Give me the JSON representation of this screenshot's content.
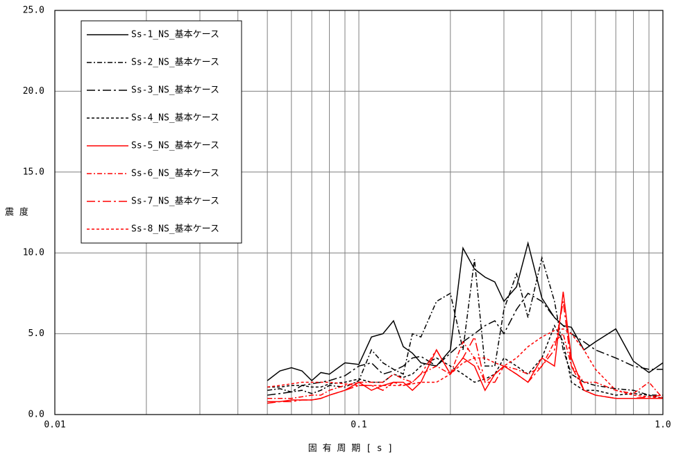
{
  "chart_data": {
    "type": "line",
    "xlabel": "固 有 周 期 [ s ]",
    "ylabel": "震 度",
    "xscale": "log",
    "xlim": [
      0.01,
      1
    ],
    "ylim": [
      0,
      25
    ],
    "xticks": [
      0.01,
      0.1,
      {
        "value": 1,
        "label": "1.0"
      }
    ],
    "xminorticks": [
      0.02,
      0.03,
      0.04,
      0.05,
      0.06,
      0.07,
      0.08,
      0.09,
      0.2,
      0.3,
      0.4,
      0.5,
      0.6,
      0.7,
      0.8,
      0.9
    ],
    "yticks": [
      {
        "value": 0,
        "label": "0.0"
      },
      {
        "value": 5,
        "label": "5.0"
      },
      {
        "value": 10,
        "label": "10.0"
      },
      {
        "value": 15,
        "label": "15.0"
      },
      {
        "value": 20,
        "label": "20.0"
      },
      {
        "value": 25,
        "label": "25.0"
      }
    ],
    "grid": true,
    "legend": "upper left",
    "x": [
      0.05,
      0.055,
      0.06,
      0.065,
      0.07,
      0.075,
      0.08,
      0.09,
      0.1,
      0.11,
      0.12,
      0.13,
      0.14,
      0.15,
      0.16,
      0.18,
      0.2,
      0.22,
      0.24,
      0.26,
      0.28,
      0.3,
      0.33,
      0.36,
      0.4,
      0.44,
      0.47,
      0.5,
      0.55,
      0.6,
      0.7,
      0.8,
      0.9,
      1.0
    ],
    "series": [
      {
        "name": "Ss-1_NS_基本ケース",
        "color": "#000000",
        "linestyle": "solid",
        "values": [
          2.1,
          2.7,
          2.9,
          2.7,
          2.1,
          2.6,
          2.5,
          3.2,
          3.1,
          4.8,
          5.0,
          5.8,
          4.2,
          3.8,
          3.2,
          3.0,
          4.0,
          10.3,
          9.0,
          8.5,
          8.2,
          7.0,
          7.9,
          10.6,
          7.2,
          6.0,
          5.5,
          5.4,
          4.0,
          4.5,
          5.3,
          3.3,
          2.6,
          3.2
        ]
      },
      {
        "name": "Ss-2_NS_基本ケース",
        "color": "#000000",
        "linestyle": "dashdot",
        "values": [
          1.5,
          1.6,
          1.4,
          1.5,
          1.3,
          1.5,
          1.8,
          1.7,
          2.1,
          4.0,
          3.2,
          2.8,
          2.5,
          5.0,
          4.8,
          7.0,
          7.5,
          4.0,
          9.6,
          3.0,
          3.0,
          6.5,
          8.7,
          6.0,
          9.7,
          7.0,
          4.0,
          2.5,
          2.0,
          1.8,
          1.6,
          1.5,
          1.2,
          1.2
        ]
      },
      {
        "name": "Ss-3_NS_基本ケース",
        "color": "#000000",
        "linestyle": "longdashdot",
        "values": [
          1.2,
          1.3,
          1.4,
          1.8,
          1.9,
          2.0,
          2.1,
          2.4,
          3.0,
          3.2,
          2.5,
          2.7,
          3.0,
          3.5,
          3.6,
          3.0,
          3.8,
          4.5,
          5.0,
          5.5,
          5.8,
          5.0,
          6.5,
          7.5,
          7.0,
          6.0,
          5.5,
          5.0,
          4.5,
          4.0,
          3.5,
          3.0,
          2.8,
          2.8
        ]
      },
      {
        "name": "Ss-4_NS_基本ケース",
        "color": "#000000",
        "linestyle": "dashed",
        "values": [
          1.7,
          1.7,
          1.8,
          1.8,
          1.7,
          1.7,
          1.9,
          2.0,
          2.2,
          2.0,
          2.0,
          2.5,
          2.3,
          2.5,
          3.0,
          3.5,
          3.0,
          2.5,
          2.0,
          2.2,
          2.5,
          3.5,
          3.0,
          2.5,
          3.5,
          5.5,
          4.5,
          2.0,
          1.5,
          1.5,
          1.2,
          1.3,
          1.2,
          1.0
        ]
      },
      {
        "name": "Ss-5_NS_基本ケース",
        "color": "#ff0000",
        "linestyle": "solid",
        "values": [
          0.8,
          0.8,
          0.9,
          0.9,
          0.9,
          1.0,
          1.2,
          1.5,
          2.0,
          1.5,
          1.8,
          2.0,
          2.0,
          1.5,
          2.0,
          4.0,
          2.5,
          3.5,
          3.0,
          1.5,
          2.5,
          3.0,
          2.5,
          2.0,
          3.5,
          3.0,
          7.6,
          3.5,
          1.5,
          1.2,
          1.0,
          1.0,
          1.0,
          1.0
        ]
      },
      {
        "name": "Ss-6_NS_基本ケース",
        "color": "#ff0000",
        "linestyle": "dashdot",
        "values": [
          1.0,
          1.0,
          1.0,
          1.1,
          1.2,
          1.2,
          1.5,
          1.8,
          2.0,
          2.0,
          2.0,
          2.5,
          2.2,
          2.0,
          2.5,
          3.0,
          2.5,
          4.5,
          3.5,
          2.0,
          2.5,
          3.0,
          2.8,
          2.5,
          3.0,
          4.5,
          5.0,
          3.0,
          2.0,
          2.0,
          1.5,
          1.3,
          2.0,
          1.0
        ]
      },
      {
        "name": "Ss-7_NS_基本ケース",
        "color": "#ff0000",
        "linestyle": "longdashdot",
        "values": [
          0.7,
          0.8,
          0.8,
          0.9,
          0.9,
          1.0,
          1.2,
          1.5,
          1.8,
          1.8,
          1.5,
          2.0,
          1.8,
          2.0,
          2.5,
          4.0,
          2.5,
          3.5,
          4.8,
          2.0,
          2.0,
          3.0,
          2.5,
          2.0,
          3.0,
          4.0,
          7.0,
          3.0,
          1.5,
          1.2,
          1.0,
          1.0,
          1.1,
          1.2
        ]
      },
      {
        "name": "Ss-8_NS_基本ケース",
        "color": "#ff0000",
        "linestyle": "dashed",
        "values": [
          1.7,
          1.8,
          1.9,
          2.0,
          2.0,
          2.0,
          2.0,
          1.9,
          1.8,
          1.8,
          1.8,
          1.8,
          1.8,
          1.9,
          2.0,
          2.0,
          2.5,
          3.2,
          3.5,
          3.5,
          3.2,
          3.0,
          3.5,
          4.2,
          4.8,
          5.2,
          5.3,
          5.0,
          4.0,
          2.8,
          1.5,
          1.2,
          1.1,
          1.0
        ]
      }
    ]
  }
}
